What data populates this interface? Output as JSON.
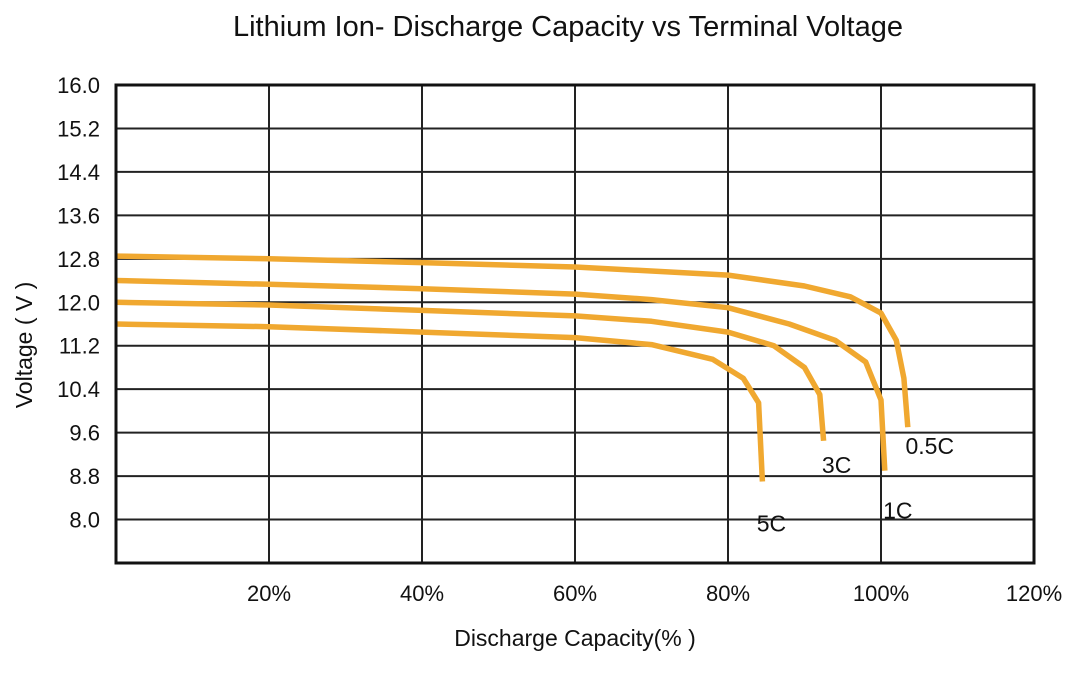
{
  "chart_data": {
    "type": "line",
    "title": "Lithium Ion- Discharge Capacity vs Terminal Voltage",
    "xlabel": "Discharge Capacity(% )",
    "ylabel": "Voltage ( V )",
    "xlim": [
      0,
      120
    ],
    "ylim": [
      7.2,
      16.0
    ],
    "x_ticks": [
      20,
      40,
      60,
      80,
      100,
      120
    ],
    "x_tick_labels": [
      "20%",
      "40%",
      "60%",
      "80%",
      "100%",
      "120%"
    ],
    "y_ticks": [
      16.0,
      15.2,
      14.4,
      13.6,
      12.8,
      12.0,
      11.2,
      10.4,
      9.6,
      8.8,
      8.0
    ],
    "y_tick_labels": [
      "16.0",
      "15.2",
      "14.4",
      "13.6",
      "12.8",
      "12.0",
      "11.2",
      "10.4",
      "9.6",
      "8.8",
      "8.0"
    ],
    "grid": true,
    "series_color": "#f0a830",
    "series": [
      {
        "name": "0.5C",
        "points": [
          [
            0,
            12.85
          ],
          [
            20,
            12.8
          ],
          [
            40,
            12.73
          ],
          [
            60,
            12.65
          ],
          [
            80,
            12.5
          ],
          [
            90,
            12.3
          ],
          [
            96,
            12.1
          ],
          [
            100,
            11.8
          ],
          [
            102,
            11.3
          ],
          [
            103,
            10.6
          ],
          [
            103.5,
            9.7
          ]
        ]
      },
      {
        "name": "1C",
        "points": [
          [
            0,
            12.4
          ],
          [
            20,
            12.33
          ],
          [
            40,
            12.25
          ],
          [
            60,
            12.15
          ],
          [
            70,
            12.05
          ],
          [
            80,
            11.9
          ],
          [
            88,
            11.6
          ],
          [
            94,
            11.3
          ],
          [
            98,
            10.9
          ],
          [
            100,
            10.2
          ],
          [
            100.5,
            8.9
          ]
        ]
      },
      {
        "name": "3C",
        "points": [
          [
            0,
            12.0
          ],
          [
            20,
            11.95
          ],
          [
            40,
            11.85
          ],
          [
            60,
            11.75
          ],
          [
            70,
            11.65
          ],
          [
            80,
            11.45
          ],
          [
            86,
            11.2
          ],
          [
            90,
            10.8
          ],
          [
            92,
            10.3
          ],
          [
            92.5,
            9.45
          ]
        ]
      },
      {
        "name": "5C",
        "points": [
          [
            0,
            11.6
          ],
          [
            20,
            11.55
          ],
          [
            40,
            11.45
          ],
          [
            60,
            11.35
          ],
          [
            70,
            11.22
          ],
          [
            78,
            10.95
          ],
          [
            82,
            10.6
          ],
          [
            84,
            10.15
          ],
          [
            84.5,
            8.7
          ]
        ]
      }
    ]
  }
}
